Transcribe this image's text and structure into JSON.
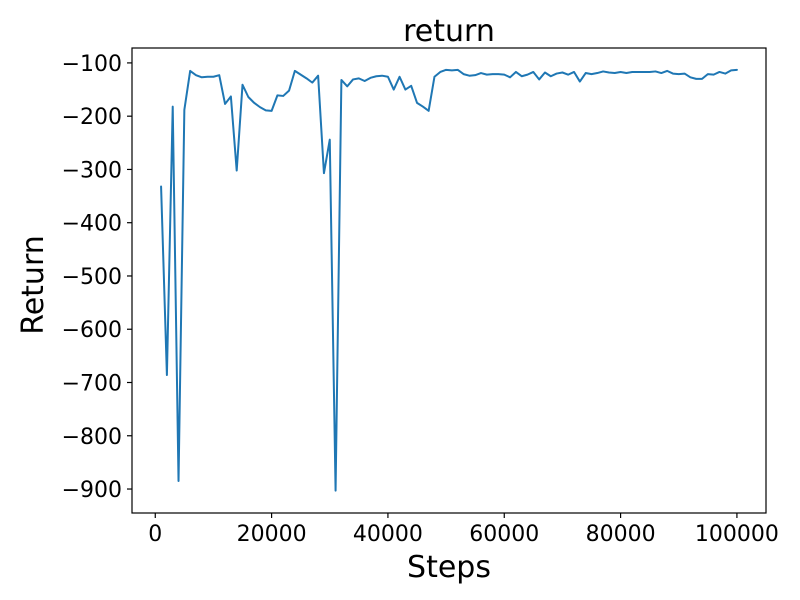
{
  "chart_data": {
    "type": "line",
    "title": "return",
    "xlabel": "Steps",
    "ylabel": "Return",
    "xlim": [
      -4000,
      105000
    ],
    "ylim": [
      -945,
      -72
    ],
    "grid": false,
    "legend": "none",
    "xticks": [
      0,
      20000,
      40000,
      60000,
      80000,
      100000
    ],
    "xtick_labels": [
      "0",
      "20000",
      "40000",
      "60000",
      "80000",
      "100000"
    ],
    "yticks": [
      -100,
      -200,
      -300,
      -400,
      -500,
      -600,
      -700,
      -800,
      -900
    ],
    "ytick_labels": [
      "−100",
      "−200",
      "−300",
      "−400",
      "−500",
      "−600",
      "−700",
      "−800",
      "−900"
    ],
    "series": [
      {
        "color": "#1f77b4",
        "x": [
          1000,
          2000,
          3000,
          4000,
          5000,
          6000,
          7000,
          8000,
          9000,
          10000,
          11000,
          12000,
          13000,
          14000,
          15000,
          16000,
          17000,
          18000,
          19000,
          20000,
          21000,
          22000,
          23000,
          24000,
          25000,
          26000,
          27000,
          28000,
          29000,
          30000,
          31000,
          32000,
          33000,
          34000,
          35000,
          36000,
          37000,
          38000,
          39000,
          40000,
          41000,
          42000,
          43000,
          44000,
          45000,
          46000,
          47000,
          48000,
          49000,
          50000,
          51000,
          52000,
          53000,
          54000,
          55000,
          56000,
          57000,
          58000,
          59000,
          60000,
          61000,
          62000,
          63000,
          64000,
          65000,
          66000,
          67000,
          68000,
          69000,
          70000,
          71000,
          72000,
          73000,
          74000,
          75000,
          76000,
          77000,
          78000,
          79000,
          80000,
          81000,
          82000,
          83000,
          84000,
          85000,
          86000,
          87000,
          88000,
          89000,
          90000,
          91000,
          92000,
          93000,
          94000,
          95000,
          96000,
          97000,
          98000,
          99000,
          100000
        ],
        "y": [
          -332,
          -686,
          -182,
          -885,
          -188,
          -115,
          -123,
          -127,
          -126,
          -126,
          -123,
          -177,
          -163,
          -302,
          -141,
          -164,
          -175,
          -183,
          -189,
          -190,
          -161,
          -162,
          -152,
          -115,
          -122,
          -129,
          -137,
          -124,
          -307,
          -244,
          -903,
          -132,
          -144,
          -131,
          -129,
          -134,
          -128,
          -125,
          -124,
          -126,
          -150,
          -126,
          -150,
          -143,
          -175,
          -182,
          -190,
          -126,
          -117,
          -113,
          -114,
          -113,
          -121,
          -124,
          -123,
          -119,
          -122,
          -121,
          -121,
          -122,
          -127,
          -117,
          -125,
          -122,
          -117,
          -131,
          -118,
          -125,
          -120,
          -118,
          -122,
          -117,
          -135,
          -119,
          -121,
          -119,
          -116,
          -118,
          -119,
          -117,
          -119,
          -117,
          -117,
          -117,
          -117,
          -116,
          -119,
          -115,
          -120,
          -121,
          -120,
          -127,
          -130,
          -130,
          -121,
          -122,
          -117,
          -120,
          -114,
          -113
        ]
      }
    ]
  }
}
